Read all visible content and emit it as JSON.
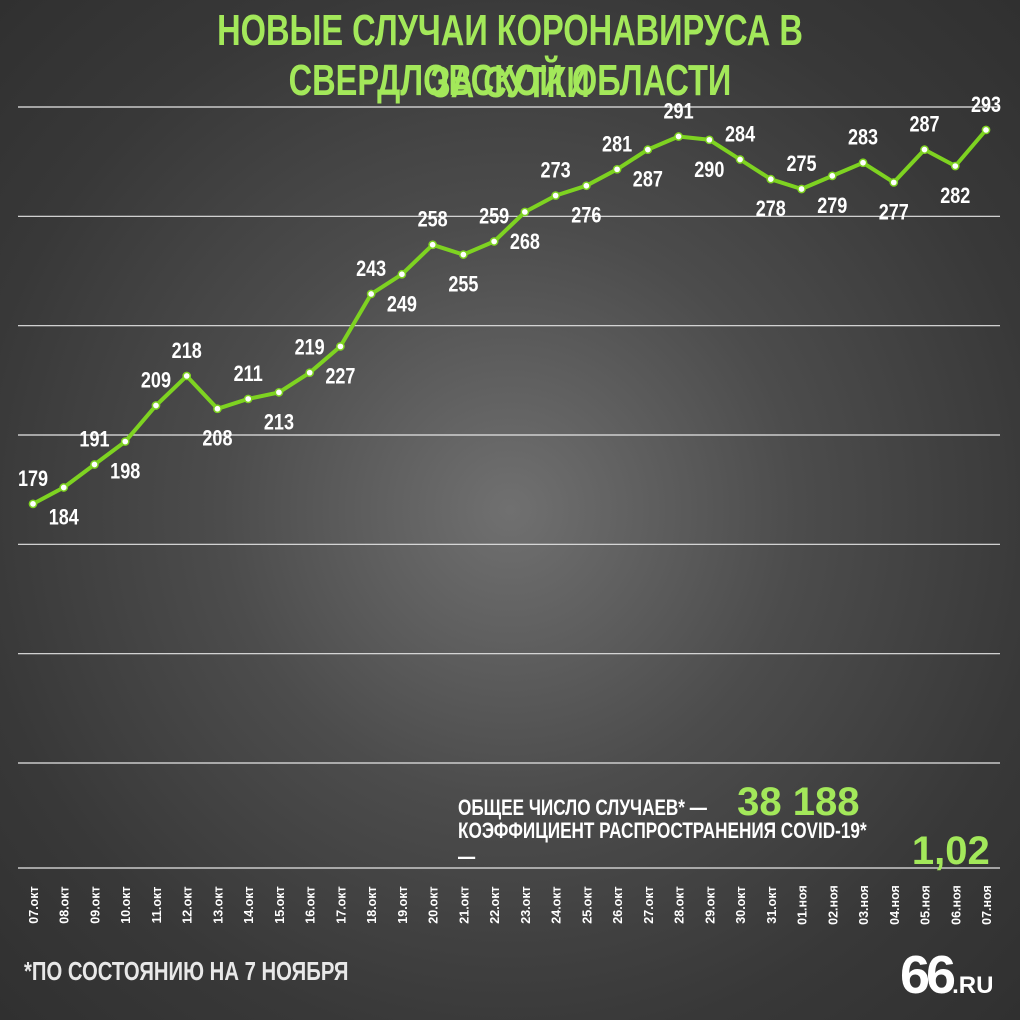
{
  "title": {
    "line1": "НОВЫЕ СЛУЧАИ КОРОНАВИРУСА В СВЕРДЛОВСКОЙ ОБЛАСТИ",
    "line2": "ЗА СУТКИ"
  },
  "totals": {
    "cases_label": "ОБЩЕЕ ЧИСЛО СЛУЧАЕВ* —",
    "cases_value": "38 188",
    "rate_label": "КОЭФФИЦИЕНТ РАСПРОСТРАНЕНИЯ COVID-19* —",
    "rate_value": "1,02"
  },
  "footnote": "*ПО СОСТОЯНИЮ НА 7 НОЯБРЯ",
  "logo": {
    "number": "66",
    "domain": ".RU"
  },
  "colors": {
    "accent": "#a3e85a",
    "line": "#7ed321",
    "text": "#ffffff",
    "grid": "#e6e6e6"
  },
  "chart_data": {
    "type": "line",
    "title": "НОВЫЕ СЛУЧАИ КОРОНАВИРУСА В СВЕРДЛОВСКОЙ ОБЛАСТИ ЗА СУТКИ",
    "categories": [
      "07.окт",
      "08.окт",
      "09.окт",
      "10.окт",
      "11.окт",
      "12.окт",
      "13.окт",
      "14.окт",
      "15.окт",
      "16.окт",
      "17.окт",
      "18.окт",
      "19.окт",
      "20.окт",
      "21.окт",
      "22.окт",
      "23.окт",
      "24.окт",
      "25.окт",
      "26.окт",
      "27.окт",
      "28.окт",
      "29.окт",
      "30.окт",
      "31.окт",
      "01.ноя",
      "02.ноя",
      "03.ноя",
      "04.ноя",
      "05.ноя",
      "06.ноя",
      "07.ноя"
    ],
    "values": [
      179,
      184,
      191,
      198,
      209,
      218,
      208,
      211,
      213,
      219,
      227,
      243,
      249,
      258,
      255,
      259,
      268,
      273,
      276,
      281,
      287,
      291,
      290,
      284,
      278,
      275,
      279,
      283,
      277,
      287,
      282,
      293
    ],
    "label_position": [
      "above",
      "below",
      "above",
      "below",
      "above",
      "above",
      "below",
      "above",
      "below",
      "above",
      "below",
      "above",
      "below",
      "above",
      "below",
      "above",
      "below",
      "above",
      "below",
      "above",
      "below",
      "above",
      "below",
      "above",
      "below",
      "above",
      "below",
      "above",
      "below",
      "above",
      "below",
      "above"
    ],
    "ylim": [
      100,
      300
    ],
    "grid": true,
    "legend": "none"
  }
}
